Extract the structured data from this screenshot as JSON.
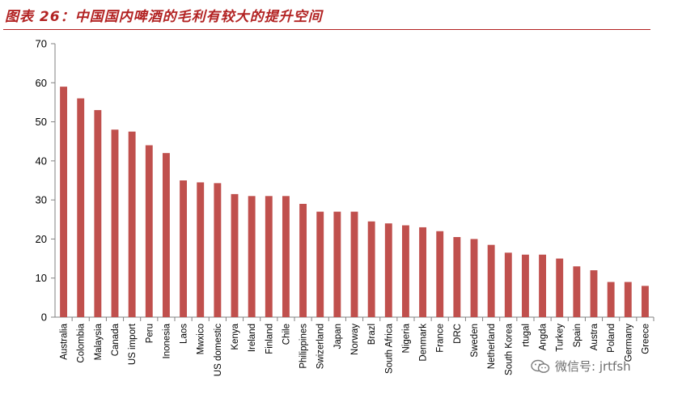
{
  "title": "图表 26：中国国内啤酒的毛利有较大的提升空间",
  "watermark": "微信号: jrtfsh",
  "colors": {
    "bar": "#c0504d",
    "title": "#b22222",
    "axis": "#808080"
  },
  "chart_data": {
    "type": "bar",
    "title": "图表 26：中国国内啤酒的毛利有较大的提升空间",
    "xlabel": "",
    "ylabel": "",
    "ylim": [
      0,
      70
    ],
    "yticks": [
      0,
      10,
      20,
      30,
      40,
      50,
      60,
      70
    ],
    "grid": false,
    "categories": [
      "Australia",
      "Colombia",
      "Malaysia",
      "Canada",
      "US import",
      "Peru",
      "Inonesia",
      "Laos",
      "Mwxico",
      "US domestic",
      "Kenya",
      "Ireland",
      "Finland",
      "Chile",
      "Philippines",
      "Swizerland",
      "Japan",
      "Norway",
      "Brazl",
      "South Africa",
      "Nigeria",
      "Denmark",
      "France",
      "DRC",
      "Sweden",
      "Netherland",
      "South Korea",
      "rtugal",
      "Angda",
      "Turkey",
      "Spain",
      "Austra",
      "Poland",
      "Germany",
      "Greece"
    ],
    "values": [
      59,
      56,
      53,
      48,
      47.5,
      44,
      42,
      35,
      34.5,
      34.3,
      31.5,
      31,
      31,
      31,
      29,
      27,
      27,
      27,
      24.5,
      24,
      23.5,
      23,
      22,
      20.5,
      20,
      18.5,
      16.5,
      16,
      16,
      15,
      13,
      12,
      9,
      9,
      8
    ]
  }
}
